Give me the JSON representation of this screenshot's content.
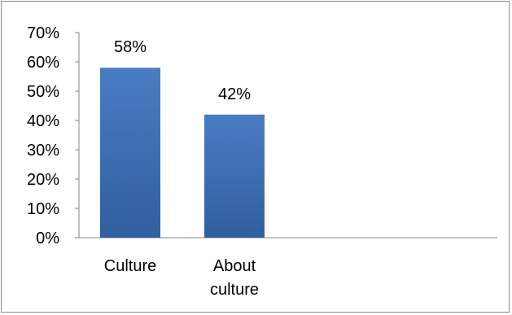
{
  "chart_data": {
    "type": "bar",
    "categories": [
      [
        "Culture"
      ],
      [
        "About",
        "culture"
      ]
    ],
    "values": [
      58,
      42
    ],
    "data_labels": [
      "58%",
      "42%"
    ],
    "ylim": [
      0,
      70
    ],
    "yticks": [
      0,
      10,
      20,
      30,
      40,
      50,
      60,
      70
    ],
    "ytick_labels": [
      "0%",
      "10%",
      "20%",
      "30%",
      "40%",
      "50%",
      "60%",
      "70%"
    ],
    "grid": false,
    "legend": "none",
    "bar_color": "#3b6db3",
    "axis_color": "#868686"
  }
}
